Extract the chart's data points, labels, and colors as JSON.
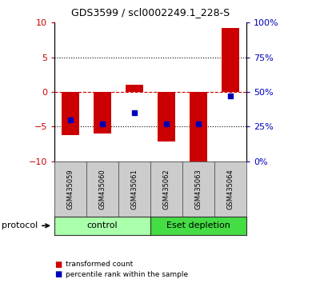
{
  "title": "GDS3599 / scl0002249.1_228-S",
  "samples": [
    "GSM435059",
    "GSM435060",
    "GSM435061",
    "GSM435062",
    "GSM435063",
    "GSM435064"
  ],
  "red_values": [
    -6.2,
    -6.0,
    1.0,
    -7.2,
    -10.0,
    9.2
  ],
  "blue_values_pct": [
    30,
    27,
    35,
    27,
    27,
    47
  ],
  "ylim_left": [
    -10,
    10
  ],
  "ylim_right": [
    0,
    100
  ],
  "yticks_left": [
    -10,
    -5,
    0,
    5,
    10
  ],
  "yticks_right": [
    0,
    25,
    50,
    75,
    100
  ],
  "ytick_labels_right": [
    "0%",
    "25%",
    "50%",
    "75%",
    "100%"
  ],
  "hlines_dotted": [
    -5,
    5
  ],
  "hline_zero_color": "#CC0000",
  "control_label": "control",
  "eset_label": "Eset depletion",
  "control_color": "#aaffaa",
  "eset_color": "#44dd44",
  "bar_color": "#CC0000",
  "dot_color": "#0000BB",
  "legend_red_label": "transformed count",
  "legend_blue_label": "percentile rank within the sample",
  "protocol_label": "protocol",
  "background_color": "#ffffff",
  "plot_bg_color": "#ffffff",
  "tick_color_left": "#CC0000",
  "tick_color_right": "#0000BB",
  "sample_box_color": "#cccccc",
  "bar_width": 0.55
}
